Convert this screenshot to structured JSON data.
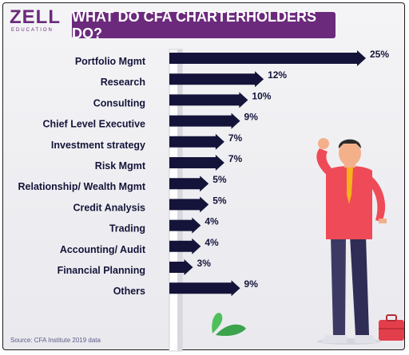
{
  "logo": {
    "name": "ZELL",
    "sub": "EDUCATION"
  },
  "source": "Source: CFA Institute 2019 data",
  "colors": {
    "accent": "#6b2a7c",
    "arrow": "#14143a",
    "shirt": "#ef4a57",
    "tie": "#f6b21d",
    "pants": "#3c3a63"
  },
  "chart_data": {
    "type": "bar",
    "title": "WHAT DO CFA CHARTERHOLDERS DO?",
    "orientation": "horizontal",
    "categories": [
      "Portfolio Mgmt",
      "Research",
      "Consulting",
      "Chief Level Executive",
      "Investment strategy",
      "Risk Mgmt",
      "Relationship/ Wealth Mgmt",
      "Credit Analysis",
      "Trading",
      "Accounting/ Audit",
      "Financial Planning",
      "Others"
    ],
    "values": [
      25,
      12,
      10,
      9,
      7,
      7,
      5,
      5,
      4,
      4,
      3,
      9
    ],
    "value_labels": [
      "25%",
      "12%",
      "10%",
      "9%",
      "7%",
      "7%",
      "5%",
      "5%",
      "4%",
      "4%",
      "3%",
      "9%"
    ],
    "xlim": [
      0,
      25
    ],
    "grid": false
  }
}
